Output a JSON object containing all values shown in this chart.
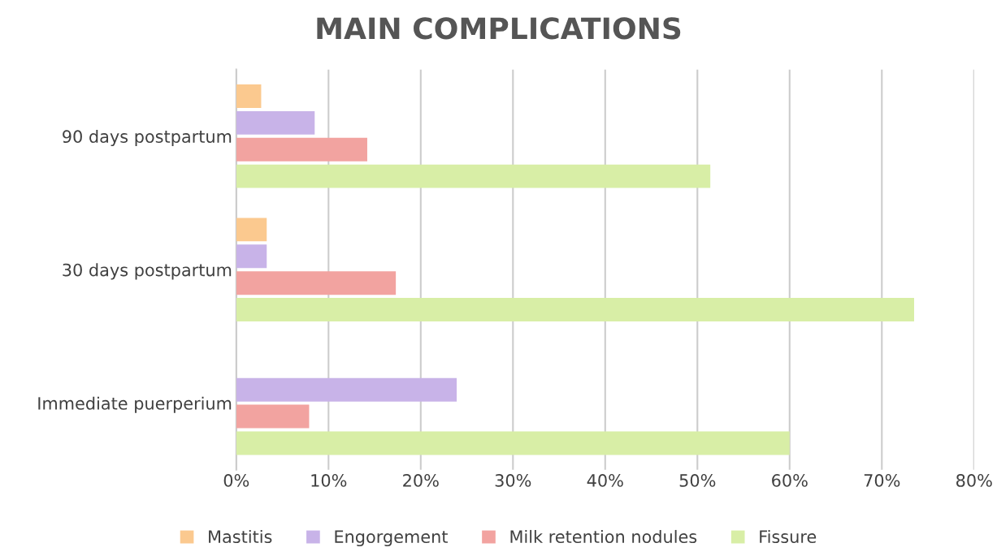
{
  "chart_data": {
    "type": "bar",
    "orientation": "horizontal",
    "title": "MAIN COMPLICATIONS",
    "categories": [
      "90 days postpartum",
      "30 days postpartum",
      "Immediate puerperium"
    ],
    "series": [
      {
        "name": "Mastitis",
        "color": "#fbc98f",
        "values": [
          2.7,
          3.3,
          null
        ]
      },
      {
        "name": "Engorgement",
        "color": "#c8b3e8",
        "values": [
          8.5,
          3.3,
          23.9
        ]
      },
      {
        "name": "Milk retention nodules",
        "color": "#f2a3a0",
        "values": [
          14.2,
          17.3,
          7.9
        ]
      },
      {
        "name": "Fissure",
        "color": "#d8eea6",
        "values": [
          51.4,
          73.5,
          60.0
        ]
      }
    ],
    "xlim": [
      0,
      80
    ],
    "xticks": [
      {
        "value": 0,
        "label": "0%"
      },
      {
        "value": 10,
        "label": "10%"
      },
      {
        "value": 20,
        "label": "20%"
      },
      {
        "value": 30,
        "label": "30%"
      },
      {
        "value": 40,
        "label": "40%"
      },
      {
        "value": 50,
        "label": "50%"
      },
      {
        "value": 60,
        "label": "60%"
      },
      {
        "value": 70,
        "label": "70%"
      },
      {
        "value": 80,
        "label": "80%"
      }
    ],
    "grid": "x",
    "legend": "bottom"
  }
}
